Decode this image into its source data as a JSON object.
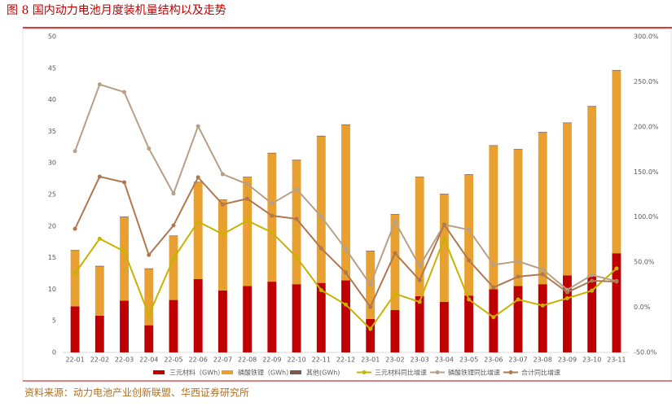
{
  "title": "图 8 国内动力电池月度装机量结构以及走势",
  "source": "资料来源：动力电池产业创新联盟、华西证券研究所",
  "chart_data": {
    "type": "bar",
    "stacked": true,
    "categories": [
      "22-01",
      "22-02",
      "22-03",
      "22-04",
      "22-05",
      "22-06",
      "22-07",
      "22-08",
      "22-09",
      "22-10",
      "22-11",
      "22-12",
      "23-01",
      "23-02",
      "23-03",
      "23-04",
      "23-05",
      "23-06",
      "23-07",
      "23-08",
      "23-09",
      "23-10",
      "23-11"
    ],
    "series": [
      {
        "name": "三元材料（GWh）",
        "type": "bar",
        "color": "#c00000",
        "values": [
          7.3,
          5.8,
          8.2,
          4.3,
          8.3,
          11.6,
          9.8,
          10.5,
          11.2,
          10.8,
          11.0,
          11.4,
          5.3,
          6.7,
          8.9,
          8.0,
          9.0,
          10.0,
          10.5,
          10.8,
          12.2,
          12.1,
          15.7
        ]
      },
      {
        "name": "磷酸铁锂（GWh）",
        "type": "bar",
        "color": "#e8a030",
        "values": [
          8.8,
          7.8,
          13.2,
          8.9,
          10.1,
          15.3,
          14.3,
          17.2,
          20.3,
          19.6,
          23.2,
          24.6,
          10.7,
          15.1,
          18.8,
          17.0,
          19.1,
          22.7,
          21.6,
          24.0,
          24.1,
          26.8,
          28.9
        ]
      },
      {
        "name": "其他(GWh)",
        "type": "bar",
        "color": "#7b5a4a",
        "values": [
          0.1,
          0.1,
          0.1,
          0.1,
          0.1,
          0.1,
          0.1,
          0.1,
          0.1,
          0.1,
          0.1,
          0.1,
          0.1,
          0.1,
          0.1,
          0.1,
          0.1,
          0.1,
          0.1,
          0.1,
          0.1,
          0.1,
          0.1
        ]
      },
      {
        "name": "三元材料同比增速",
        "type": "line",
        "axis": "y2",
        "color": "#c9b200",
        "values": [
          37.5,
          76,
          62,
          -8.5,
          54,
          95,
          81,
          96,
          83,
          55.5,
          19,
          3,
          -24,
          15,
          6,
          76,
          8.6,
          -11,
          8.6,
          2,
          10,
          18.5,
          43
        ]
      },
      {
        "name": "磷酸铁锂同比增速",
        "type": "line",
        "axis": "y2",
        "color": "#b8a088",
        "values": [
          173,
          247,
          238.5,
          176,
          126,
          200.7,
          147.5,
          136.6,
          115,
          131,
          100.6,
          64.5,
          25,
          95,
          45.6,
          91.6,
          86,
          47,
          51,
          42,
          19.4,
          35.7,
          29
        ]
      },
      {
        "name": "合计同比增速",
        "type": "line",
        "axis": "y2",
        "color": "#b07850",
        "values": [
          87,
          144.8,
          138.5,
          58,
          90.7,
          144,
          114,
          120.4,
          101.5,
          98,
          65.4,
          38.4,
          0.5,
          60,
          30,
          91.6,
          52,
          22,
          34,
          36.6,
          16.7,
          29.4,
          28.5
        ]
      }
    ],
    "ylim": [
      0,
      50
    ],
    "yticks": [
      0,
      5,
      10,
      15,
      20,
      25,
      30,
      35,
      40,
      45,
      50
    ],
    "y2lim": [
      -50,
      300
    ],
    "y2ticks": [
      {
        "value": -50,
        "label": "-50.0%"
      },
      {
        "value": 0,
        "label": "0.0%"
      },
      {
        "value": 50,
        "label": "50.0%"
      },
      {
        "value": 100,
        "label": "100.0%"
      },
      {
        "value": 150,
        "label": "150.0%"
      },
      {
        "value": 200,
        "label": "200.0%"
      },
      {
        "value": 250,
        "label": "250.0%"
      },
      {
        "value": 300,
        "label": "300.0%"
      }
    ],
    "grid": false
  }
}
